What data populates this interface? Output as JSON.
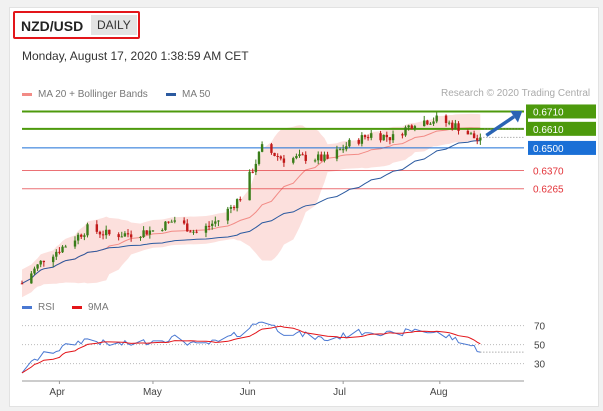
{
  "header": {
    "symbol": "NZD/USD",
    "timeframe": "DAILY",
    "datetime": "Monday, August 17, 2020 1:38:59 AM CET"
  },
  "legend": {
    "ma20": "MA 20 + Bollinger Bands",
    "ma50": "MA 50",
    "rsi": "RSI",
    "ma9": "9MA"
  },
  "copyright": "Research © 2020 Trading Central",
  "colors": {
    "resistance": "#4d9a0c",
    "support": "#e3343a",
    "current": "#1a6fd6",
    "ma50": "#2b5aa0",
    "bollinger": "#fbd6d2",
    "ma20": "#f28b86",
    "candle_up": "#3a7d19",
    "candle_down": "#c11a1a",
    "rsi": "#4a78d2",
    "ma9": "#e3151a",
    "arrow": "#2a64b4"
  },
  "chart_data": [
    {
      "type": "candlestick",
      "x_range": [
        "2020-03-20",
        "2020-08-28"
      ],
      "ylim": [
        0.567,
        0.673
      ],
      "xticks": [
        "Apr",
        "May",
        "Jun",
        "Jul",
        "Aug"
      ],
      "levels": [
        {
          "value": 0.671,
          "label": "0.6710",
          "kind": "resistance"
        },
        {
          "value": 0.661,
          "label": "0.6610",
          "kind": "resistance"
        },
        {
          "value": 0.65,
          "label": "0.6500",
          "kind": "current"
        },
        {
          "value": 0.637,
          "label": "0.6370",
          "kind": "support"
        },
        {
          "value": 0.6265,
          "label": "0.6265",
          "kind": "support"
        }
      ],
      "close_anchors": [
        {
          "date": "2020-03-20",
          "close": 0.572
        },
        {
          "date": "2020-03-27",
          "close": 0.586
        },
        {
          "date": "2020-04-03",
          "close": 0.594
        },
        {
          "date": "2020-04-10",
          "close": 0.6035
        },
        {
          "date": "2020-04-17",
          "close": 0.6
        },
        {
          "date": "2020-04-24",
          "close": 0.6005
        },
        {
          "date": "2020-05-01",
          "close": 0.6025
        },
        {
          "date": "2020-05-08",
          "close": 0.6085
        },
        {
          "date": "2020-05-15",
          "close": 0.601
        },
        {
          "date": "2020-05-22",
          "close": 0.6085
        },
        {
          "date": "2020-05-29",
          "close": 0.6215
        },
        {
          "date": "2020-06-05",
          "close": 0.65
        },
        {
          "date": "2020-06-12",
          "close": 0.6435
        },
        {
          "date": "2020-06-19",
          "close": 0.6445
        },
        {
          "date": "2020-06-26",
          "close": 0.6435
        },
        {
          "date": "2020-07-03",
          "close": 0.6525
        },
        {
          "date": "2020-07-10",
          "close": 0.658
        },
        {
          "date": "2020-07-17",
          "close": 0.656
        },
        {
          "date": "2020-07-24",
          "close": 0.665
        },
        {
          "date": "2020-07-31",
          "close": 0.6665
        },
        {
          "date": "2020-08-07",
          "close": 0.662
        },
        {
          "date": "2020-08-14",
          "close": 0.6535
        }
      ]
    },
    {
      "type": "line",
      "series": [
        {
          "name": "RSI"
        },
        {
          "name": "9MA"
        }
      ],
      "yticks": [
        30,
        50,
        70
      ],
      "ylim": [
        18,
        78
      ],
      "rsi_anchors": [
        {
          "date": "2020-03-20",
          "rsi": 22
        },
        {
          "date": "2020-03-26",
          "rsi": 38
        },
        {
          "date": "2020-04-03",
          "rsi": 48
        },
        {
          "date": "2020-04-10",
          "rsi": 56
        },
        {
          "date": "2020-04-17",
          "rsi": 50
        },
        {
          "date": "2020-04-24",
          "rsi": 51
        },
        {
          "date": "2020-05-01",
          "rsi": 54
        },
        {
          "date": "2020-05-08",
          "rsi": 57
        },
        {
          "date": "2020-05-15",
          "rsi": 49
        },
        {
          "date": "2020-05-22",
          "rsi": 53
        },
        {
          "date": "2020-05-29",
          "rsi": 62
        },
        {
          "date": "2020-06-05",
          "rsi": 76
        },
        {
          "date": "2020-06-12",
          "rsi": 63
        },
        {
          "date": "2020-06-19",
          "rsi": 60
        },
        {
          "date": "2020-06-26",
          "rsi": 55
        },
        {
          "date": "2020-07-03",
          "rsi": 61
        },
        {
          "date": "2020-07-10",
          "rsi": 65
        },
        {
          "date": "2020-07-17",
          "rsi": 60
        },
        {
          "date": "2020-07-24",
          "rsi": 66
        },
        {
          "date": "2020-07-31",
          "rsi": 62
        },
        {
          "date": "2020-08-07",
          "rsi": 55
        },
        {
          "date": "2020-08-14",
          "rsi": 44
        }
      ]
    }
  ]
}
